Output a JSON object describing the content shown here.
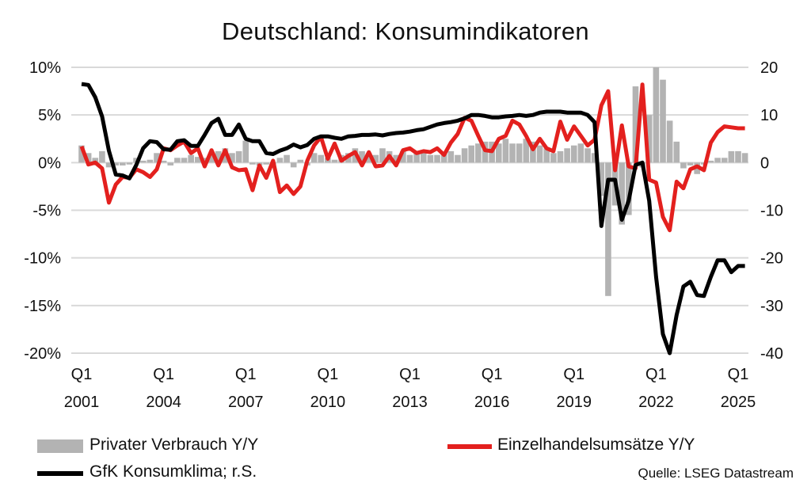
{
  "chart_data": {
    "type": "bar+line",
    "title": "Deutschland: Konsumindikatoren",
    "source": "Quelle: LSEG Datastream",
    "x_start": "2001 Q1",
    "x_end": "2025 Q2",
    "frequency": "quarterly",
    "x_ticks": [
      {
        "q": "Q1",
        "year": "2001"
      },
      {
        "q": "Q1",
        "year": "2004"
      },
      {
        "q": "Q1",
        "year": "2007"
      },
      {
        "q": "Q1",
        "year": "2010"
      },
      {
        "q": "Q1",
        "year": "2013"
      },
      {
        "q": "Q1",
        "year": "2016"
      },
      {
        "q": "Q1",
        "year": "2019"
      },
      {
        "q": "Q1",
        "year": "2022"
      },
      {
        "q": "Q1",
        "year": "2025"
      }
    ],
    "y_left": {
      "range": [
        -20,
        10
      ],
      "ticks": [
        "10%",
        "5%",
        "0%",
        "-5%",
        "-10%",
        "-15%",
        "-20%"
      ]
    },
    "y_right": {
      "range": [
        -40,
        20
      ],
      "ticks": [
        "20",
        "10",
        "0",
        "-10",
        "-20",
        "-30",
        "-40"
      ]
    },
    "grid": true,
    "legend_position": "bottom",
    "series": [
      {
        "name": "Privater Verbrauch Y/Y",
        "kind": "bar",
        "axis": "left",
        "color": "#b3b3b3",
        "values": [
          1.8,
          1.0,
          0.5,
          1.2,
          -0.5,
          -0.3,
          -0.3,
          -0.2,
          0.5,
          0.2,
          0.3,
          1.0,
          0.2,
          -0.3,
          0.5,
          0.5,
          0.8,
          0.6,
          0.5,
          0.8,
          1.2,
          1.5,
          1.0,
          1.2,
          2.3,
          -0.2,
          -0.3,
          -0.2,
          -0.3,
          0.5,
          0.8,
          -0.5,
          0.3,
          -0.3,
          1.0,
          0.8,
          0.5,
          0.3,
          0.8,
          1.0,
          1.5,
          1.2,
          1.0,
          0.8,
          1.5,
          1.2,
          0.8,
          1.2,
          0.8,
          1.0,
          1.0,
          0.8,
          0.8,
          1.0,
          1.2,
          0.8,
          1.5,
          1.8,
          2.0,
          2.2,
          2.2,
          2.0,
          2.5,
          2.0,
          2.0,
          2.5,
          2.2,
          1.8,
          1.5,
          1.0,
          1.2,
          1.5,
          1.8,
          2.0,
          1.5,
          1.0,
          -3.5,
          -14.0,
          -4.5,
          -6.5,
          -5.5,
          8.0,
          -0.5,
          5.0,
          10.0,
          8.7,
          4.4,
          2.2,
          -0.6,
          -0.3,
          -1.2,
          -0.2,
          0.2,
          0.5,
          0.5,
          1.2,
          1.2,
          1.0
        ]
      },
      {
        "name": "Einzelhandelsumsätze Y/Y",
        "kind": "line",
        "axis": "left",
        "color": "#e3201e",
        "values": [
          1.7,
          -0.2,
          0.0,
          -0.6,
          -4.2,
          -2.3,
          -1.5,
          -1.6,
          -0.7,
          -1.0,
          -1.5,
          -0.7,
          1.5,
          1.3,
          1.8,
          2.2,
          1.0,
          1.5,
          -0.4,
          1.3,
          -0.3,
          1.3,
          -0.5,
          -0.8,
          -0.7,
          -2.9,
          -0.3,
          -1.6,
          0.2,
          -3.1,
          -2.4,
          -3.3,
          -2.5,
          0.2,
          1.8,
          2.7,
          0.4,
          2.0,
          0.2,
          0.7,
          1.1,
          -0.3,
          1.1,
          -0.4,
          -0.3,
          0.7,
          -0.3,
          1.3,
          1.5,
          1.0,
          1.2,
          1.1,
          1.5,
          0.8,
          2.1,
          3.0,
          4.7,
          4.4,
          2.8,
          1.3,
          1.2,
          2.5,
          2.8,
          4.4,
          4.0,
          2.8,
          1.4,
          2.5,
          1.5,
          1.2,
          4.3,
          2.4,
          3.8,
          2.8,
          1.8,
          2.4,
          6.0,
          7.5,
          -0.8,
          3.9,
          -0.4,
          -0.6,
          8.2,
          -1.8,
          -2.1,
          -5.7,
          -7.1,
          -2.0,
          -2.7,
          -0.7,
          -0.4,
          -0.8,
          2.1,
          3.2,
          3.8,
          3.7,
          3.6,
          3.6
        ]
      },
      {
        "name": "GfK Konsumklima; r.S.",
        "kind": "line",
        "axis": "right",
        "color": "#000000",
        "values": [
          16.5,
          16.3,
          13.7,
          9.7,
          2.5,
          -2.5,
          -2.7,
          -3.3,
          -0.5,
          3.0,
          4.5,
          4.3,
          2.8,
          2.7,
          4.5,
          4.7,
          3.5,
          3.5,
          5.8,
          8.3,
          9.2,
          5.8,
          5.8,
          8.0,
          5.0,
          4.5,
          4.5,
          2.0,
          1.8,
          2.5,
          3.0,
          3.8,
          3.2,
          3.7,
          5.0,
          5.5,
          5.5,
          5.2,
          5.0,
          5.5,
          5.6,
          5.8,
          5.8,
          5.9,
          5.7,
          6.0,
          6.2,
          6.3,
          6.5,
          6.8,
          7.0,
          7.5,
          8.0,
          8.3,
          8.5,
          8.8,
          9.3,
          10.0,
          10.0,
          9.8,
          9.5,
          9.5,
          9.7,
          9.8,
          10.0,
          9.8,
          10.0,
          10.5,
          10.7,
          10.7,
          10.7,
          10.5,
          10.5,
          10.5,
          10.0,
          8.5,
          -13.3,
          -3.6,
          -3.6,
          -12.0,
          -8.0,
          -0.5,
          0.0,
          -8.0,
          -24.0,
          -36.0,
          -40.0,
          -32.0,
          -26.0,
          -25.0,
          -27.8,
          -28.0,
          -24.0,
          -20.5,
          -20.5,
          -23.0,
          -21.7,
          -21.7
        ]
      }
    ]
  }
}
